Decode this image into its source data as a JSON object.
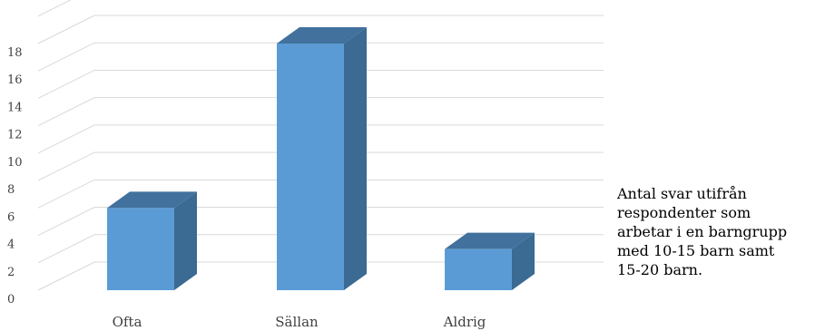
{
  "chart_data": {
    "type": "bar",
    "categories": [
      "Ofta",
      "Sällan",
      "Aldrig"
    ],
    "values": [
      6,
      18,
      3
    ],
    "y_ticks": [
      "0",
      "2",
      "4",
      "6",
      "8",
      "10",
      "12",
      "14",
      "16",
      "18"
    ],
    "ylim": [
      0,
      18
    ],
    "grid": true,
    "colors": {
      "bar_front": "#5b9bd5",
      "bar_side": "#3b6a92",
      "bar_top": "#41719c"
    }
  },
  "legend": {
    "lines": [
      "Antal svar utifrån",
      "respondenter som",
      "arbetar i en barngrupp",
      "med 10-15 barn samt",
      "15-20 barn."
    ]
  }
}
